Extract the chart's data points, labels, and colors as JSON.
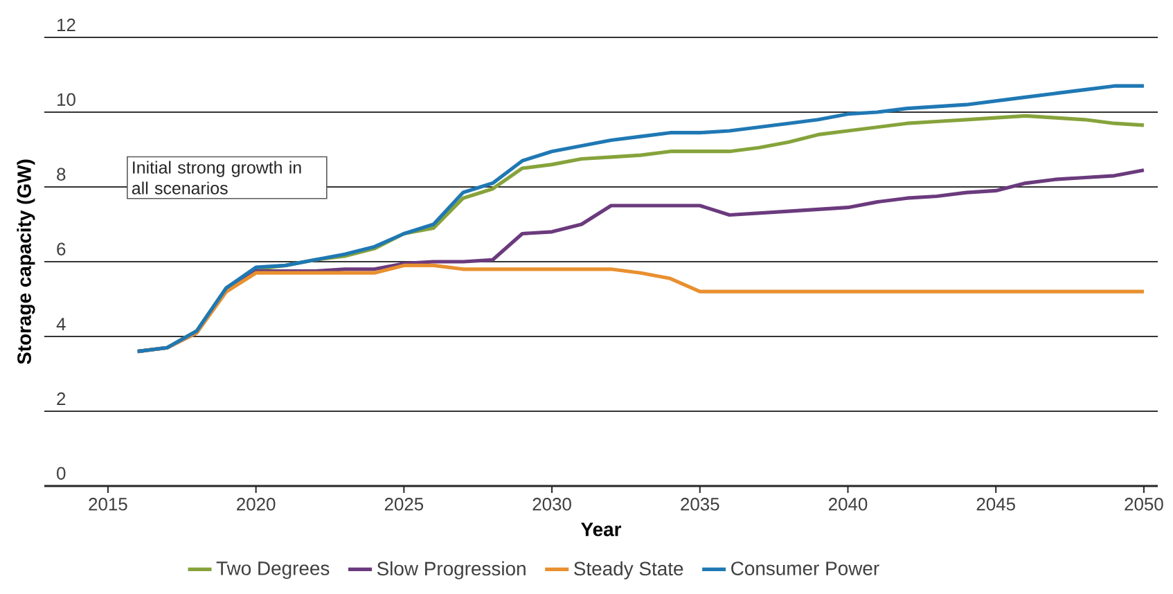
{
  "chart_data": {
    "type": "line",
    "xlabel": "Year",
    "ylabel": "Storage capacity (GW)",
    "x": [
      2016,
      2017,
      2018,
      2019,
      2020,
      2021,
      2022,
      2023,
      2024,
      2025,
      2026,
      2027,
      2028,
      2029,
      2030,
      2031,
      2032,
      2033,
      2034,
      2035,
      2036,
      2037,
      2038,
      2039,
      2040,
      2041,
      2042,
      2043,
      2044,
      2045,
      2046,
      2047,
      2048,
      2049,
      2050
    ],
    "series": [
      {
        "name": "Two Degrees",
        "color": "#86a33b",
        "values": [
          3.6,
          3.7,
          4.15,
          5.3,
          5.8,
          5.9,
          6.05,
          6.15,
          6.35,
          6.75,
          6.9,
          7.7,
          7.95,
          8.5,
          8.6,
          8.75,
          8.8,
          8.85,
          8.95,
          8.95,
          8.95,
          9.05,
          9.2,
          9.4,
          9.5,
          9.6,
          9.7,
          9.75,
          9.8,
          9.85,
          9.9,
          9.85,
          9.8,
          9.7,
          9.65
        ]
      },
      {
        "name": "Slow Progression",
        "color": "#6b3a7d",
        "values": [
          3.6,
          3.7,
          4.1,
          5.25,
          5.75,
          5.75,
          5.75,
          5.8,
          5.8,
          5.95,
          6.0,
          6.0,
          6.05,
          6.75,
          6.8,
          7.0,
          7.5,
          7.5,
          7.5,
          7.5,
          7.25,
          7.3,
          7.35,
          7.4,
          7.45,
          7.6,
          7.7,
          7.75,
          7.85,
          7.9,
          8.1,
          8.2,
          8.25,
          8.3,
          8.45
        ]
      },
      {
        "name": "Steady State",
        "color": "#e8902f",
        "values": [
          3.6,
          3.7,
          4.1,
          5.2,
          5.7,
          5.7,
          5.7,
          5.7,
          5.7,
          5.9,
          5.9,
          5.8,
          5.8,
          5.8,
          5.8,
          5.8,
          5.8,
          5.7,
          5.55,
          5.2,
          5.2,
          5.2,
          5.2,
          5.2,
          5.2,
          5.2,
          5.2,
          5.2,
          5.2,
          5.2,
          5.2,
          5.2,
          5.2,
          5.2,
          5.2
        ]
      },
      {
        "name": "Consumer Power",
        "color": "#1f78b4",
        "values": [
          3.6,
          3.7,
          4.15,
          5.3,
          5.85,
          5.9,
          6.05,
          6.2,
          6.4,
          6.75,
          7.0,
          7.85,
          8.1,
          8.7,
          8.95,
          9.1,
          9.25,
          9.35,
          9.45,
          9.45,
          9.5,
          9.6,
          9.7,
          9.8,
          9.95,
          10.0,
          10.1,
          10.15,
          10.2,
          10.3,
          10.4,
          10.5,
          10.6,
          10.7,
          10.7
        ]
      }
    ],
    "xlim": [
      2012.85,
      2050.47
    ],
    "ylim": [
      0,
      12
    ],
    "xticks": [
      2015,
      2020,
      2025,
      2030,
      2035,
      2040,
      2045,
      2050
    ],
    "yticks": [
      0,
      2,
      4,
      6,
      8,
      10,
      12
    ],
    "grid": "y",
    "legend": "bottom",
    "marker": "none",
    "line_style": "solid",
    "annotations": [
      "Initial strong growth in all scenarios"
    ]
  }
}
